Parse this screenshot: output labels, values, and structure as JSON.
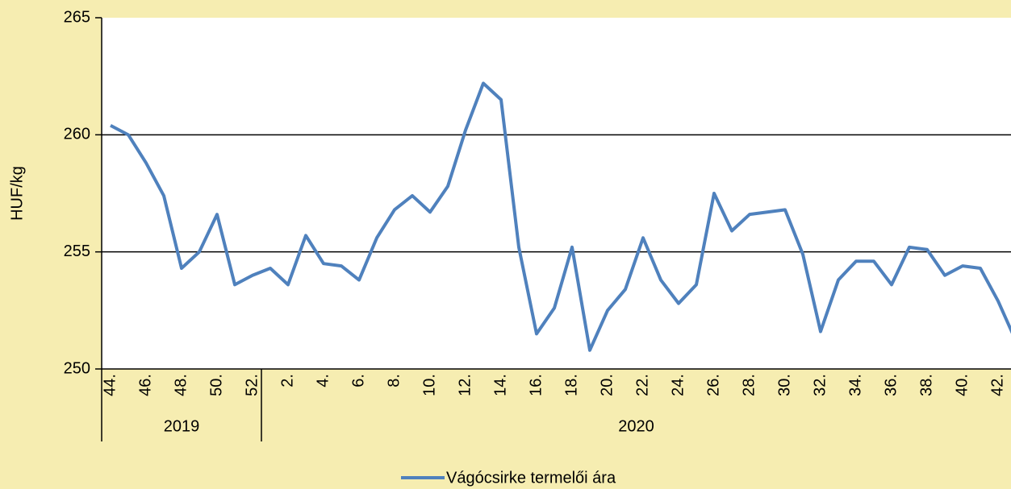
{
  "chart_data": {
    "type": "line",
    "y_label": "HUF/kg",
    "categories": [
      "44.",
      null,
      "46.",
      null,
      "48.",
      null,
      "50.",
      null,
      "52.",
      null,
      "2.",
      null,
      "4.",
      null,
      "6.",
      null,
      "8.",
      null,
      "10.",
      null,
      "12.",
      null,
      "14.",
      null,
      "16.",
      null,
      "18.",
      null,
      "20.",
      null,
      "22.",
      null,
      "24.",
      null,
      "26.",
      null,
      "28.",
      null,
      "30.",
      null,
      "32.",
      null,
      "34.",
      null,
      "36.",
      null,
      "38.",
      null,
      "40.",
      null,
      "42.",
      null
    ],
    "groups": [
      {
        "label": "2019",
        "span": 9
      },
      {
        "label": "2020",
        "span": 43
      }
    ],
    "series": [
      {
        "name": "Vágócsirke termelői ára",
        "color": "#4f81bd",
        "values": [
          260.4,
          260.0,
          258.8,
          257.4,
          254.3,
          255.0,
          256.6,
          253.6,
          254.0,
          254.3,
          253.6,
          255.7,
          254.5,
          254.4,
          253.8,
          255.6,
          256.8,
          257.4,
          256.7,
          257.8,
          260.2,
          262.2,
          261.5,
          255.2,
          251.5,
          252.6,
          255.2,
          250.8,
          252.5,
          253.4,
          255.6,
          253.8,
          252.8,
          253.6,
          257.5,
          255.9,
          256.6,
          256.7,
          256.8,
          254.9,
          251.6,
          253.8,
          254.6,
          254.6,
          253.6,
          255.2,
          255.1,
          254.0,
          254.4,
          254.3,
          252.9,
          251.2
        ]
      }
    ],
    "ylim": [
      250,
      265
    ],
    "yticks": [
      250,
      255,
      260,
      265
    ],
    "grid": true,
    "legend": "bottom"
  }
}
